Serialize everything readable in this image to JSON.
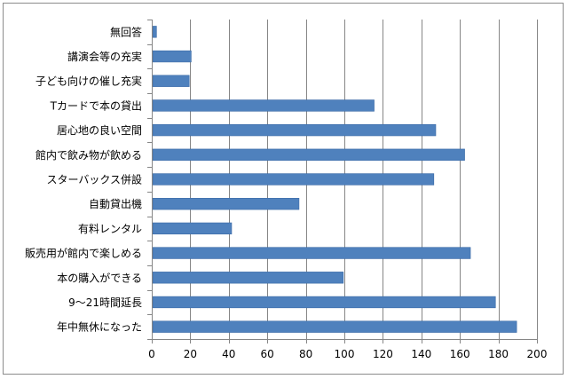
{
  "chart_data": {
    "type": "bar",
    "orientation": "horizontal",
    "title": "",
    "xlabel": "",
    "ylabel": "",
    "categories": [
      "無回答",
      "講演会等の充実",
      "子ども向けの催し充実",
      "Tカードで本の貸出",
      "居心地の良い空間",
      "館内で飲み物が飲める",
      "スターバックス併設",
      "自動貸出機",
      "有料レンタル",
      "販売用が館内で楽しめる",
      "本の購入ができる",
      "9～21時間延長",
      "年中無休になった"
    ],
    "values": [
      2,
      20,
      19,
      115,
      147,
      162,
      146,
      76,
      41,
      165,
      99,
      178,
      189
    ],
    "xlim": [
      0,
      200
    ],
    "xticks": [
      "0",
      "20",
      "40",
      "60",
      "80",
      "100",
      "120",
      "140",
      "160",
      "180",
      "200"
    ],
    "grid": true,
    "legend": "none",
    "colors": {
      "bar": "#4f81bd",
      "bar_edge": "#3a6aa6",
      "grid": "#868686",
      "axis": "#868686"
    }
  }
}
